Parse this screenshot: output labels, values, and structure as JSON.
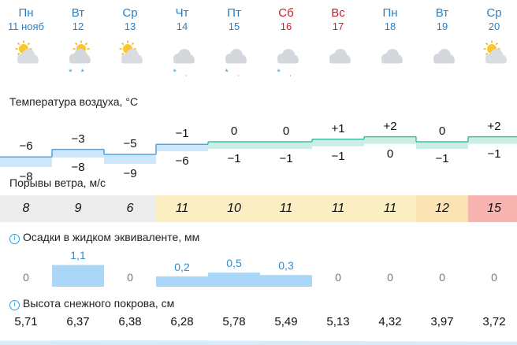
{
  "days": [
    {
      "dow": "Пн",
      "date": "11 нояб",
      "weekend": false,
      "icon": "partly-cloudy",
      "precip": ""
    },
    {
      "dow": "Вт",
      "date": "12",
      "weekend": false,
      "icon": "cloudy-sun",
      "precip": "* *"
    },
    {
      "dow": "Ср",
      "date": "13",
      "weekend": false,
      "icon": "partly-cloudy",
      "precip": ""
    },
    {
      "dow": "Чт",
      "date": "14",
      "weekend": false,
      "icon": "cloudy",
      "precip": "* ˌ"
    },
    {
      "dow": "Пт",
      "date": "15",
      "weekend": false,
      "icon": "cloudy",
      "precip": "* ˌ"
    },
    {
      "dow": "Сб",
      "date": "16",
      "weekend": true,
      "icon": "cloudy",
      "precip": "* ˌ"
    },
    {
      "dow": "Вс",
      "date": "17",
      "weekend": true,
      "icon": "cloudy",
      "precip": ""
    },
    {
      "dow": "Пн",
      "date": "18",
      "weekend": false,
      "icon": "cloudy",
      "precip": ""
    },
    {
      "dow": "Вт",
      "date": "19",
      "weekend": false,
      "icon": "cloudy",
      "precip": ""
    },
    {
      "dow": "Ср",
      "date": "20",
      "weekend": false,
      "icon": "partly-cloudy",
      "precip": ""
    }
  ],
  "temperature": {
    "title": "Температура воздуха, °С",
    "max": [
      "−6",
      "−3",
      "−5",
      "−1",
      "0",
      "0",
      "+1",
      "+2",
      "0",
      "+2"
    ],
    "min": [
      "−8",
      "−8",
      "−9",
      "−6",
      "−1",
      "−1",
      "−1",
      "0",
      "−1",
      "−1"
    ],
    "max_values": [
      -6,
      -3,
      -5,
      -1,
      0,
      0,
      1,
      2,
      0,
      2
    ],
    "min_values": [
      -8,
      -8,
      -9,
      -6,
      -1,
      -1,
      -1,
      0,
      -1,
      -1
    ]
  },
  "wind": {
    "title": "Порывы ветра, м/с",
    "gusts": [
      "8",
      "9",
      "6",
      "11",
      "10",
      "11",
      "11",
      "11",
      "12",
      "15"
    ],
    "colors": [
      "#ececec",
      "#ececec",
      "#ececec",
      "#fbeec2",
      "#fbeec2",
      "#fbeec2",
      "#fbeec2",
      "#fbeec2",
      "#fbe3b4",
      "#f7b4b0"
    ]
  },
  "precipitation": {
    "title": "Осадки в жидком эквиваленте, мм",
    "labels": [
      "0",
      "1,1",
      "0",
      "0,2",
      "0,5",
      "0,3",
      "0",
      "0",
      "0",
      "0"
    ],
    "values": [
      0,
      1.1,
      0,
      0.2,
      0.5,
      0.3,
      0,
      0,
      0,
      0
    ]
  },
  "snow": {
    "title": "Высота снежного покрова, см",
    "labels": [
      "5,71",
      "6,37",
      "6,38",
      "6,28",
      "5,78",
      "5,49",
      "5,13",
      "4,32",
      "3,97",
      "3,72"
    ],
    "values": [
      5.71,
      6.37,
      6.38,
      6.28,
      5.78,
      5.49,
      5.13,
      4.32,
      3.97,
      3.72
    ]
  },
  "colors": {
    "accent": "#2b7fc3",
    "weekend": "#c6202a",
    "precip_bar": "#aad6f7",
    "temp_warm": "#cdeee6",
    "temp_cold": "#cce7fa"
  }
}
